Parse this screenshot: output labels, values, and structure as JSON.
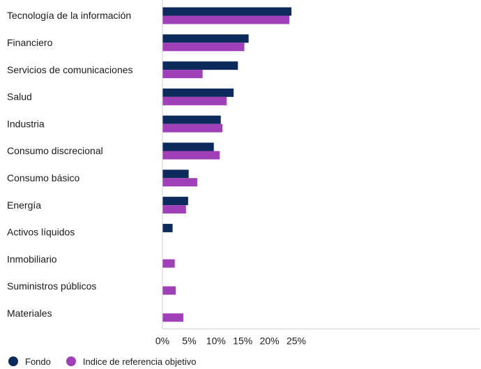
{
  "chart_data": {
    "type": "bar",
    "orientation": "horizontal",
    "categories": [
      "Tecnología de la información",
      "Financiero",
      "Servicios de comunicaciones",
      "Salud",
      "Industria",
      "Consumo discrecional",
      "Consumo básico",
      "Energía",
      "Activos líquidos",
      "Inmobiliario",
      "Suministros públicos",
      "Materiales"
    ],
    "series": [
      {
        "name": "Fondo",
        "color": "#0d2a5c",
        "values": [
          24.1,
          16.1,
          14.1,
          13.3,
          10.9,
          9.6,
          4.9,
          4.8,
          1.9,
          null,
          null,
          null
        ]
      },
      {
        "name": "Indice de referencia objetivo",
        "color": "#a040b8",
        "values": [
          23.7,
          15.3,
          7.5,
          12.0,
          11.2,
          10.7,
          6.5,
          4.4,
          null,
          2.3,
          2.5,
          3.9
        ]
      }
    ],
    "x_ticks": [
      "0%",
      "5%",
      "10%",
      "15%",
      "20%",
      "25%"
    ],
    "xlim": [
      0,
      30
    ],
    "grid": false,
    "legend_position": "bottom-left"
  }
}
